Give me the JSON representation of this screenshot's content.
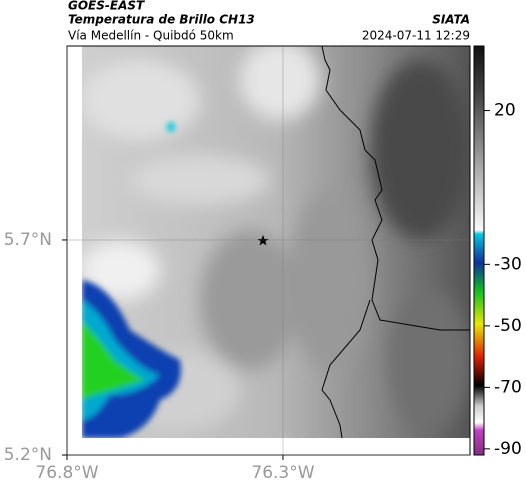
{
  "header": {
    "title": "GOES-EAST",
    "subtitle": "Temperatura de Brillo CH13",
    "region": "Vía Medellín - Quibdó 50km",
    "source": "SIATA",
    "timestamp": "2024-07-11 12:29"
  },
  "map": {
    "xlim": [
      -76.8,
      -75.867
    ],
    "ylim": [
      5.2,
      6.151
    ],
    "xticks": [
      {
        "value": -76.8,
        "label": "76.8°W"
      },
      {
        "value": -76.3,
        "label": "76.3°W"
      }
    ],
    "yticks": [
      {
        "value": 5.2,
        "label": "5.2°N"
      },
      {
        "value": 5.7,
        "label": "5.7°N"
      }
    ],
    "grid": true
  },
  "colorbar": {
    "clim": [
      -92,
      41
    ],
    "ticks": [
      20,
      -30,
      -50,
      -70,
      -90
    ]
  }
}
